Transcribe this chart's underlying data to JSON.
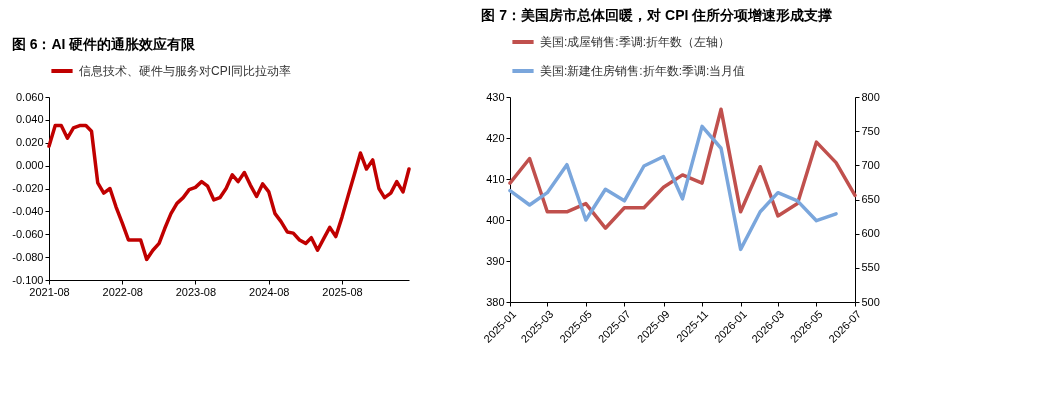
{
  "chart_data": [
    {
      "type": "line",
      "title": "图 6：AI 硬件的通胀效应有限",
      "legend": "top",
      "x": [
        "2021-08",
        "2021-09",
        "2021-10",
        "2021-11",
        "2021-12",
        "2022-01",
        "2022-02",
        "2022-03",
        "2022-04",
        "2022-05",
        "2022-06",
        "2022-07",
        "2022-08",
        "2022-09",
        "2022-10",
        "2022-11",
        "2022-12",
        "2023-01",
        "2023-02",
        "2023-03",
        "2023-04",
        "2023-05",
        "2023-06",
        "2023-07",
        "2023-08",
        "2023-09",
        "2023-10",
        "2023-11",
        "2023-12",
        "2024-01",
        "2024-02",
        "2024-03",
        "2024-04",
        "2024-05",
        "2024-06",
        "2024-07",
        "2024-08",
        "2024-09",
        "2024-10",
        "2024-11",
        "2024-12",
        "2025-01",
        "2025-02",
        "2025-03",
        "2025-04",
        "2025-05",
        "2025-06",
        "2025-07",
        "2025-08",
        "2025-09",
        "2025-10",
        "2025-11",
        "2025-12",
        "2026-01",
        "2026-02",
        "2026-03",
        "2026-04",
        "2026-05",
        "2026-06",
        "2026-07"
      ],
      "xlim": [
        "2021-08",
        "2026-07"
      ],
      "xticks": [
        "2021-08",
        "2022-08",
        "2023-08",
        "2024-08",
        "2025-08"
      ],
      "ylim": [
        -0.1,
        0.06
      ],
      "yticks": [
        {
          "value": -0.1,
          "label": "-0.100"
        },
        {
          "value": -0.08,
          "label": "-0.080"
        },
        {
          "value": -0.06,
          "label": "-0.060"
        },
        {
          "value": -0.04,
          "label": "-0.040"
        },
        {
          "value": -0.02,
          "label": "-0.020"
        },
        {
          "value": 0,
          "label": "0.000"
        },
        {
          "value": 0.02,
          "label": "0.020"
        },
        {
          "value": 0.04,
          "label": "0.040"
        },
        {
          "value": 0.06,
          "label": "0.060"
        }
      ],
      "series": [
        {
          "name": "信息技术、硬件与服务对CPI同比拉动率",
          "color": "#c00000",
          "values": [
            0.017,
            0.035,
            0.035,
            0.024,
            0.033,
            0.035,
            0.035,
            0.03,
            -0.015,
            -0.024,
            -0.02,
            -0.036,
            -0.05,
            -0.065,
            -0.065,
            -0.065,
            -0.082,
            -0.074,
            -0.068,
            -0.055,
            -0.042,
            -0.033,
            -0.028,
            -0.021,
            -0.019,
            -0.014,
            -0.018,
            -0.03,
            -0.028,
            -0.02,
            -0.008,
            -0.014,
            -0.006,
            -0.017,
            -0.027,
            -0.016,
            -0.023,
            -0.042,
            -0.049,
            -0.058,
            -0.059,
            -0.065,
            -0.068,
            -0.063,
            -0.074,
            -0.064,
            -0.054,
            -0.062,
            -0.045,
            -0.026,
            -0.008,
            0.011,
            -0.003,
            0.005,
            -0.02,
            -0.028,
            -0.024,
            -0.014,
            -0.023,
            -0.003
          ]
        }
      ]
    },
    {
      "type": "line",
      "title": "图 7：美国房市总体回暖，对 CPI 住所分项增速形成支撑",
      "legend": "top",
      "x": [
        "2025-01",
        "2025-02",
        "2025-03",
        "2025-04",
        "2025-05",
        "2025-06",
        "2025-07",
        "2025-08",
        "2025-09",
        "2025-10",
        "2025-11",
        "2025-12",
        "2026-01",
        "2026-02",
        "2026-03",
        "2026-04",
        "2026-05",
        "2026-06",
        "2026-07"
      ],
      "xlim": [
        "2025-01",
        "2026-07"
      ],
      "xticks": [
        "2025-01",
        "2025-03",
        "2025-05",
        "2025-07",
        "2025-09",
        "2025-11",
        "2026-01",
        "2026-03",
        "2026-05",
        "2026-07"
      ],
      "ylim": [
        380,
        430
      ],
      "yticks": [
        380,
        390,
        400,
        410,
        420,
        430
      ],
      "y2lim": [
        500,
        800
      ],
      "y2ticks": [
        500,
        550,
        600,
        650,
        700,
        750,
        800
      ],
      "series": [
        {
          "name": "美国:成屋销售:季调:折年数（左轴）",
          "color": "#c0504d",
          "values": [
            409,
            415,
            402,
            402,
            404,
            398,
            403,
            403,
            408,
            411,
            409,
            427,
            402,
            413,
            401,
            404,
            419,
            414,
            406
          ]
        },
        {
          "name": "美国:新建住房销售:折年数:季调:当月值",
          "color": "#7aa6dc",
          "axis": "y2",
          "values": [
            663,
            642,
            660,
            701,
            620,
            665,
            648,
            699,
            713,
            651,
            757,
            725,
            577,
            632,
            660,
            648,
            619,
            629,
            null
          ]
        }
      ]
    }
  ]
}
